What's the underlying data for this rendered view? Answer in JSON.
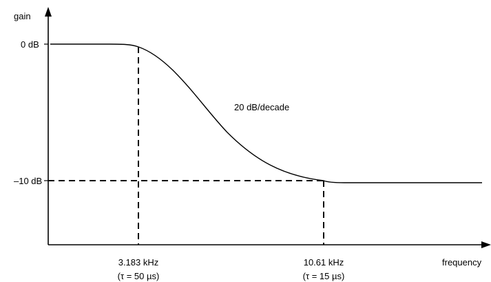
{
  "chart_data": {
    "type": "line",
    "title": "",
    "xlabel": "frequency",
    "ylabel": "gain",
    "y_ticks": [
      {
        "label": "0 dB",
        "value": 0
      },
      {
        "label": "–10 dB",
        "value": -10
      }
    ],
    "corner_frequencies": [
      {
        "freq_label": "3.183 kHz",
        "tau_label": "(τ = 50 µs)",
        "gain_db": 0
      },
      {
        "freq_label": "10.61 kHz",
        "tau_label": "(τ = 15 µs)",
        "gain_db": -10
      }
    ],
    "annotation": "20 dB/decade",
    "series": [
      {
        "x": [
          0.0,
          0.1,
          0.2,
          0.3,
          0.4,
          0.5,
          0.6,
          0.7,
          0.8,
          0.9,
          1.0
        ],
        "values": [
          0,
          0,
          0,
          -0.3,
          -1.8,
          -5.0,
          -8.1,
          -9.5,
          -10,
          -10,
          -10
        ]
      }
    ],
    "ylim": [
      -14.4,
      0
    ],
    "grid": false,
    "legend": "none"
  }
}
